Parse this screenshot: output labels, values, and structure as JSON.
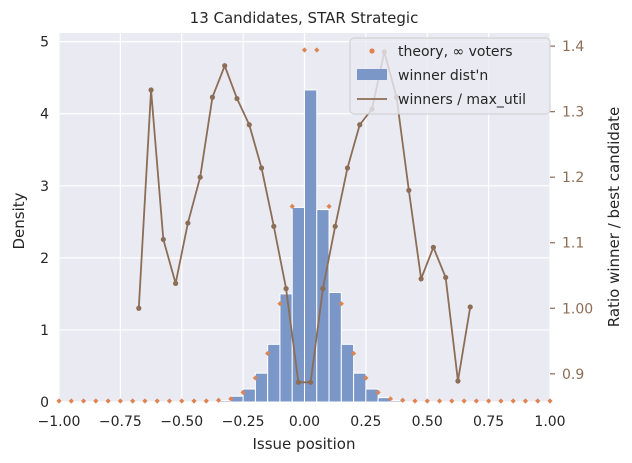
{
  "chart_data": {
    "type": "bar",
    "title": "13 Candidates, STAR Strategic",
    "xlabel": "Issue position",
    "ylabel": "Density",
    "y2label": "Ratio winner / best candidate",
    "xlim": [
      -1.0,
      1.0
    ],
    "ylim": [
      0,
      5.12
    ],
    "y2lim": [
      0.857,
      1.42
    ],
    "xticks": [
      "−1.00",
      "−0.75",
      "−0.50",
      "−0.25",
      "0.00",
      "0.25",
      "0.50",
      "0.75",
      "1.00"
    ],
    "xtick_values": [
      -1.0,
      -0.75,
      -0.5,
      -0.25,
      0.0,
      0.25,
      0.5,
      0.75,
      1.0
    ],
    "yticks": [
      "0",
      "1",
      "2",
      "3",
      "4",
      "5"
    ],
    "ytick_values": [
      0,
      1,
      2,
      3,
      4,
      5
    ],
    "y2ticks": [
      "0.9",
      "1.00",
      "1.1",
      "1.2",
      "1.3",
      "1.4"
    ],
    "y2tick_values": [
      0.9,
      1.0,
      1.1,
      1.2,
      1.3,
      1.4
    ],
    "grid": true,
    "legend_position": "top-right",
    "colors": {
      "background": "#eaeaf2",
      "bars": "#7b97c8",
      "bar_edge": "#ffffff",
      "theory": "#dd8452",
      "ratio_line": "#8c6d55",
      "grid": "#ffffff",
      "text": "#262626"
    },
    "series": [
      {
        "name": "winner dist'n",
        "type": "bar",
        "bin_width": 0.05,
        "bin_centers": [
          -0.325,
          -0.275,
          -0.225,
          -0.175,
          -0.125,
          -0.075,
          -0.025,
          0.025,
          0.075,
          0.125,
          0.175,
          0.225,
          0.275,
          0.325,
          0.375
        ],
        "values": [
          0.02,
          0.08,
          0.18,
          0.4,
          0.8,
          1.5,
          2.7,
          4.33,
          2.67,
          1.52,
          0.8,
          0.4,
          0.18,
          0.06,
          0.02
        ]
      },
      {
        "name": "theory, ∞ voters",
        "type": "scatter",
        "x": [
          -1.0,
          -0.95,
          -0.9,
          -0.85,
          -0.8,
          -0.75,
          -0.7,
          -0.65,
          -0.6,
          -0.55,
          -0.5,
          -0.45,
          -0.4,
          -0.35,
          -0.3,
          -0.25,
          -0.2,
          -0.15,
          -0.1,
          -0.05,
          0.0,
          0.05,
          0.1,
          0.15,
          0.2,
          0.25,
          0.3,
          0.35,
          0.4,
          0.45,
          0.5,
          0.55,
          0.6,
          0.65,
          0.7,
          0.75,
          0.8,
          0.85,
          0.9,
          0.95,
          1.0
        ],
        "values": [
          0,
          0,
          0,
          0,
          0,
          0,
          0,
          0,
          0,
          0,
          0,
          0,
          0,
          0.01,
          0.03,
          0.12,
          0.32,
          0.66,
          1.35,
          2.7,
          4.87,
          4.87,
          2.7,
          1.35,
          0.66,
          0.32,
          0.12,
          0.03,
          0.01,
          0,
          0,
          0,
          0,
          0,
          0,
          0,
          0,
          0,
          0,
          0,
          0
        ]
      },
      {
        "name": "winners / max_util",
        "type": "line",
        "axis": "right",
        "x": [
          -0.675,
          -0.625,
          -0.575,
          -0.525,
          -0.475,
          -0.425,
          -0.375,
          -0.325,
          -0.275,
          -0.225,
          -0.175,
          -0.125,
          -0.075,
          -0.025,
          0.025,
          0.075,
          0.125,
          0.175,
          0.225,
          0.275,
          0.325,
          0.375,
          0.425,
          0.475,
          0.525,
          0.575,
          0.625,
          0.675
        ],
        "values": [
          1.0,
          1.333,
          1.105,
          1.038,
          1.13,
          1.2,
          1.322,
          1.37,
          1.32,
          1.28,
          1.214,
          1.125,
          1.03,
          0.887,
          0.887,
          1.03,
          1.125,
          1.214,
          1.28,
          1.304,
          1.391,
          1.322,
          1.18,
          1.045,
          1.093,
          1.047,
          0.889,
          1.002
        ]
      }
    ]
  }
}
